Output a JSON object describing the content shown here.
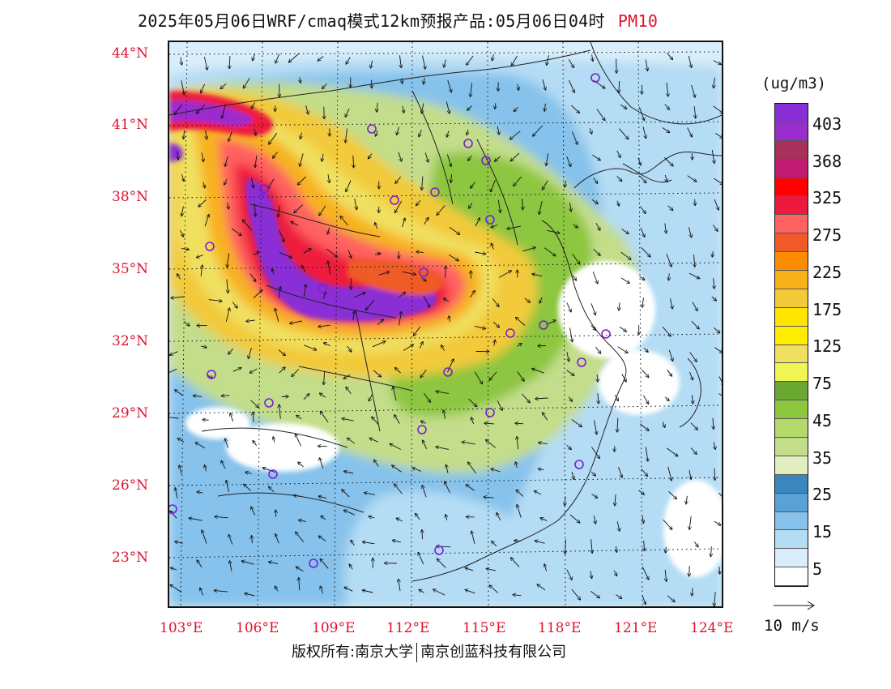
{
  "header": {
    "title": "2025年05月06日WRF/cmaq模式12km预报产品:05月06日04时",
    "variable": "PM10"
  },
  "axes": {
    "lat_labels": [
      "44°N",
      "41°N",
      "38°N",
      "35°N",
      "32°N",
      "29°N",
      "26°N",
      "23°N"
    ],
    "lon_labels": [
      "103°E",
      "106°E",
      "109°E",
      "112°E",
      "115°E",
      "118°E",
      "121°E",
      "124°E"
    ]
  },
  "legend": {
    "unit": "(ug/m3)",
    "labels": [
      "403",
      "368",
      "325",
      "275",
      "225",
      "175",
      "125",
      "75",
      "45",
      "35",
      "25",
      "15",
      "5"
    ],
    "colors": [
      "#8a2fd6",
      "#9b2ccf",
      "#a8305a",
      "#c01a72",
      "#ff0000",
      "#ee1a3c",
      "#ff6060",
      "#f05a28",
      "#ff8c00",
      "#f7b21a",
      "#f2ca3a",
      "#ffe600",
      "#ffee00",
      "#f0e060",
      "#eef555",
      "#6aa832",
      "#8dc63f",
      "#b5d96a",
      "#c3dd8a",
      "#e0eec0",
      "#3a87c0",
      "#5aa2d6",
      "#86c2eb",
      "#b4dcf4",
      "#d9eefa",
      "#ffffff"
    ],
    "wind_label": "10 m/s"
  },
  "footer": {
    "copyright_left": "版权所有:南京大学",
    "copyright_right": "南京创蓝科技有限公司"
  }
}
